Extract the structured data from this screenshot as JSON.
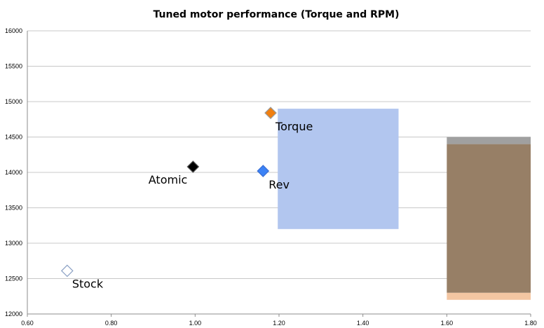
{
  "chart_data": {
    "type": "scatter",
    "title": "Tuned motor performance (Torque and RPM)",
    "xlabel": "",
    "ylabel": "",
    "xlim": [
      0.6,
      1.8
    ],
    "ylim": [
      12000,
      16000
    ],
    "x_ticks": [
      "0.60",
      "0.80",
      "1.00",
      "1.20",
      "1.40",
      "1.60",
      "1.80"
    ],
    "y_ticks": [
      "12000",
      "12500",
      "13000",
      "13500",
      "14000",
      "14500",
      "15000",
      "15500",
      "16000"
    ],
    "grid": true,
    "legend": "none",
    "points": [
      {
        "label": "Stock",
        "x": 0.695,
        "y": 12610,
        "fill": "#ffffff",
        "stroke": "#8aa0c4"
      },
      {
        "label": "Atomic",
        "x": 0.995,
        "y": 14080,
        "fill": "#000000",
        "stroke": "#555555"
      },
      {
        "label": "Rev",
        "x": 1.162,
        "y": 14020,
        "fill": "#3b82f6",
        "stroke": "#3b6fd4"
      },
      {
        "label": "Torque",
        "x": 1.18,
        "y": 14840,
        "fill": "#f07f10",
        "stroke": "#999999"
      }
    ],
    "regions": [
      {
        "x": [
          1.197,
          1.485
        ],
        "y": [
          13200,
          14900
        ],
        "color": "#b2c6ef"
      },
      {
        "x": [
          1.6,
          1.8
        ],
        "y": [
          12200,
          12300
        ],
        "color": "#f3c6a2"
      },
      {
        "x": [
          1.6,
          1.8
        ],
        "y": [
          12300,
          14400
        ],
        "color": "#977f66"
      },
      {
        "x": [
          1.6,
          1.8
        ],
        "y": [
          14400,
          14500
        ],
        "color": "#a0a0a0"
      }
    ]
  }
}
